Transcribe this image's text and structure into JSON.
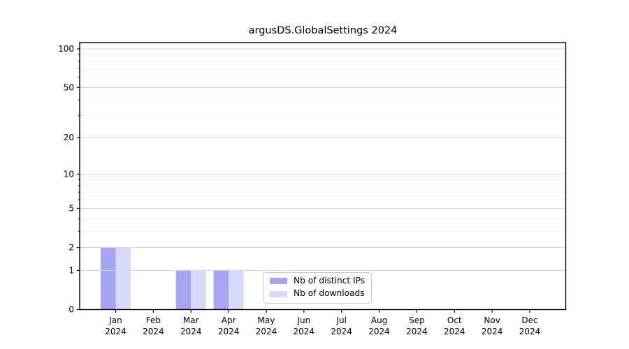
{
  "chart_data": {
    "type": "bar",
    "title": "argusDS.GlobalSettings 2024",
    "categories": [
      "Jan",
      "Feb",
      "Mar",
      "Apr",
      "May",
      "Jun",
      "Jul",
      "Aug",
      "Sep",
      "Oct",
      "Nov",
      "Dec"
    ],
    "category_year": "2024",
    "series": [
      {
        "name": "Nb of distinct IPs",
        "color": "#a5a5f1",
        "values": [
          2,
          0,
          1,
          1,
          0,
          0,
          0,
          0,
          0,
          0,
          0,
          0
        ]
      },
      {
        "name": "Nb of downloads",
        "color": "#d8d8f9",
        "values": [
          2,
          0,
          1,
          1,
          0,
          0,
          0,
          0,
          0,
          0,
          0,
          0
        ]
      }
    ],
    "xlabel": "",
    "ylabel": "",
    "yscale": "log1p",
    "yticks": [
      0,
      1,
      2,
      5,
      10,
      20,
      50,
      100
    ],
    "yticks_minor": [
      3,
      4,
      6,
      7,
      8,
      9,
      30,
      40,
      60,
      70,
      80,
      90
    ],
    "ylim": [
      0,
      112
    ],
    "grid": "horizontal-major-and-minor",
    "legend_position": "lower-center-inside"
  },
  "colors": {
    "background": "#ffffff",
    "spine": "#000000",
    "tick_text": "#000000",
    "grid_major": "#d4d4d4",
    "grid_minor": "#f0f0f0",
    "legend_border": "#cccccc"
  }
}
